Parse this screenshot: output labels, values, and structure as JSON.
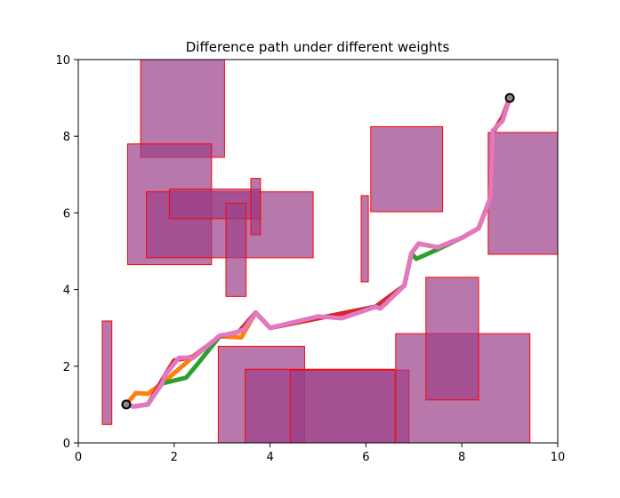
{
  "chart_data": {
    "type": "line",
    "title": "Difference path under different weights",
    "xlabel": "",
    "ylabel": "",
    "xlim": [
      0,
      10
    ],
    "ylim": [
      0,
      10
    ],
    "xticks": [
      0,
      2,
      4,
      6,
      8,
      10
    ],
    "yticks": [
      0,
      2,
      4,
      6,
      8,
      10
    ],
    "grid": false,
    "start_point": [
      1.0,
      1.0
    ],
    "goal_point": [
      9.0,
      9.0
    ],
    "obstacles": [
      {
        "x0": 1.3,
        "y0": 7.45,
        "x1": 3.05,
        "y1": 10.0
      },
      {
        "x0": 1.03,
        "y0": 4.65,
        "x1": 2.78,
        "y1": 7.8
      },
      {
        "x0": 1.42,
        "y0": 4.83,
        "x1": 4.9,
        "y1": 6.55
      },
      {
        "x0": 1.9,
        "y0": 5.85,
        "x1": 3.8,
        "y1": 6.62
      },
      {
        "x0": 3.08,
        "y0": 3.82,
        "x1": 3.5,
        "y1": 6.25
      },
      {
        "x0": 3.6,
        "y0": 5.43,
        "x1": 3.8,
        "y1": 6.9
      },
      {
        "x0": 5.9,
        "y0": 4.2,
        "x1": 6.05,
        "y1": 6.45
      },
      {
        "x0": 6.1,
        "y0": 6.03,
        "x1": 7.6,
        "y1": 8.25
      },
      {
        "x0": 8.55,
        "y0": 4.92,
        "x1": 10.0,
        "y1": 8.1
      },
      {
        "x0": 0.5,
        "y0": 0.48,
        "x1": 0.7,
        "y1": 3.18
      },
      {
        "x0": 2.92,
        "y0": 0.0,
        "x1": 4.72,
        "y1": 2.52
      },
      {
        "x0": 3.48,
        "y0": 0.0,
        "x1": 6.6,
        "y1": 1.92
      },
      {
        "x0": 4.42,
        "y0": 0.0,
        "x1": 6.9,
        "y1": 1.9
      },
      {
        "x0": 6.62,
        "y0": 0.0,
        "x1": 9.42,
        "y1": 2.85
      },
      {
        "x0": 7.25,
        "y0": 1.12,
        "x1": 8.35,
        "y1": 4.32
      }
    ],
    "series": [
      {
        "color": "#ff7f0e",
        "points": [
          [
            1.0,
            1.0
          ],
          [
            1.2,
            1.3
          ],
          [
            1.45,
            1.28
          ],
          [
            1.75,
            1.55
          ],
          [
            2.4,
            2.25
          ],
          [
            2.95,
            2.78
          ],
          [
            3.4,
            2.75
          ],
          [
            3.7,
            3.4
          ],
          [
            4.0,
            3.0
          ],
          [
            5.0,
            3.25
          ],
          [
            6.2,
            3.55
          ],
          [
            6.8,
            4.1
          ],
          [
            6.95,
            4.95
          ],
          [
            7.1,
            5.2
          ],
          [
            7.5,
            5.1
          ],
          [
            8.0,
            5.35
          ],
          [
            8.35,
            5.6
          ],
          [
            8.6,
            6.4
          ],
          [
            8.65,
            8.1
          ],
          [
            8.85,
            8.5
          ],
          [
            9.0,
            9.0
          ]
        ]
      },
      {
        "color": "#2ca02c",
        "points": [
          [
            1.0,
            1.0
          ],
          [
            1.15,
            0.95
          ],
          [
            1.45,
            1.0
          ],
          [
            1.75,
            1.55
          ],
          [
            2.25,
            1.7
          ],
          [
            2.45,
            2.0
          ],
          [
            2.95,
            2.78
          ],
          [
            3.35,
            2.9
          ],
          [
            3.7,
            3.4
          ],
          [
            4.0,
            3.0
          ],
          [
            5.0,
            3.25
          ],
          [
            6.2,
            3.55
          ],
          [
            6.8,
            4.1
          ],
          [
            6.95,
            4.95
          ],
          [
            7.05,
            4.8
          ],
          [
            7.5,
            5.05
          ],
          [
            8.0,
            5.35
          ],
          [
            8.35,
            5.6
          ],
          [
            8.6,
            6.4
          ],
          [
            8.65,
            8.1
          ],
          [
            8.85,
            8.5
          ],
          [
            9.0,
            9.0
          ]
        ]
      },
      {
        "color": "#d62728",
        "points": [
          [
            1.0,
            1.0
          ],
          [
            1.15,
            0.95
          ],
          [
            1.45,
            1.0
          ],
          [
            1.8,
            1.75
          ],
          [
            2.0,
            2.15
          ],
          [
            2.4,
            2.25
          ],
          [
            2.95,
            2.78
          ],
          [
            3.35,
            2.9
          ],
          [
            3.7,
            3.4
          ],
          [
            4.0,
            3.0
          ],
          [
            5.0,
            3.25
          ],
          [
            6.2,
            3.55
          ],
          [
            6.8,
            4.1
          ],
          [
            6.95,
            4.95
          ],
          [
            7.1,
            5.2
          ],
          [
            7.5,
            5.1
          ],
          [
            8.0,
            5.35
          ],
          [
            8.35,
            5.6
          ],
          [
            8.6,
            6.4
          ],
          [
            8.65,
            8.1
          ],
          [
            8.85,
            8.5
          ],
          [
            9.0,
            9.0
          ]
        ]
      },
      {
        "color": "#e377c2",
        "points": [
          [
            1.0,
            1.0
          ],
          [
            1.15,
            0.95
          ],
          [
            1.45,
            1.0
          ],
          [
            1.75,
            1.55
          ],
          [
            1.8,
            1.75
          ],
          [
            2.1,
            2.22
          ],
          [
            2.4,
            2.22
          ],
          [
            2.95,
            2.8
          ],
          [
            3.2,
            2.85
          ],
          [
            3.45,
            2.95
          ],
          [
            3.7,
            3.4
          ],
          [
            4.0,
            3.0
          ],
          [
            5.0,
            3.3
          ],
          [
            5.5,
            3.25
          ],
          [
            6.2,
            3.55
          ],
          [
            6.3,
            3.5
          ],
          [
            6.8,
            4.1
          ],
          [
            6.95,
            4.95
          ],
          [
            7.1,
            5.2
          ],
          [
            7.5,
            5.1
          ],
          [
            8.0,
            5.35
          ],
          [
            8.35,
            5.6
          ],
          [
            8.6,
            6.4
          ],
          [
            8.65,
            8.15
          ],
          [
            8.85,
            8.4
          ],
          [
            9.0,
            9.0
          ]
        ]
      }
    ]
  },
  "colors": {
    "obstacle_fill": "#9b3f87",
    "obstacle_edge": "#ff0000",
    "marker_edge": "#000000",
    "marker_face": "#888888"
  }
}
